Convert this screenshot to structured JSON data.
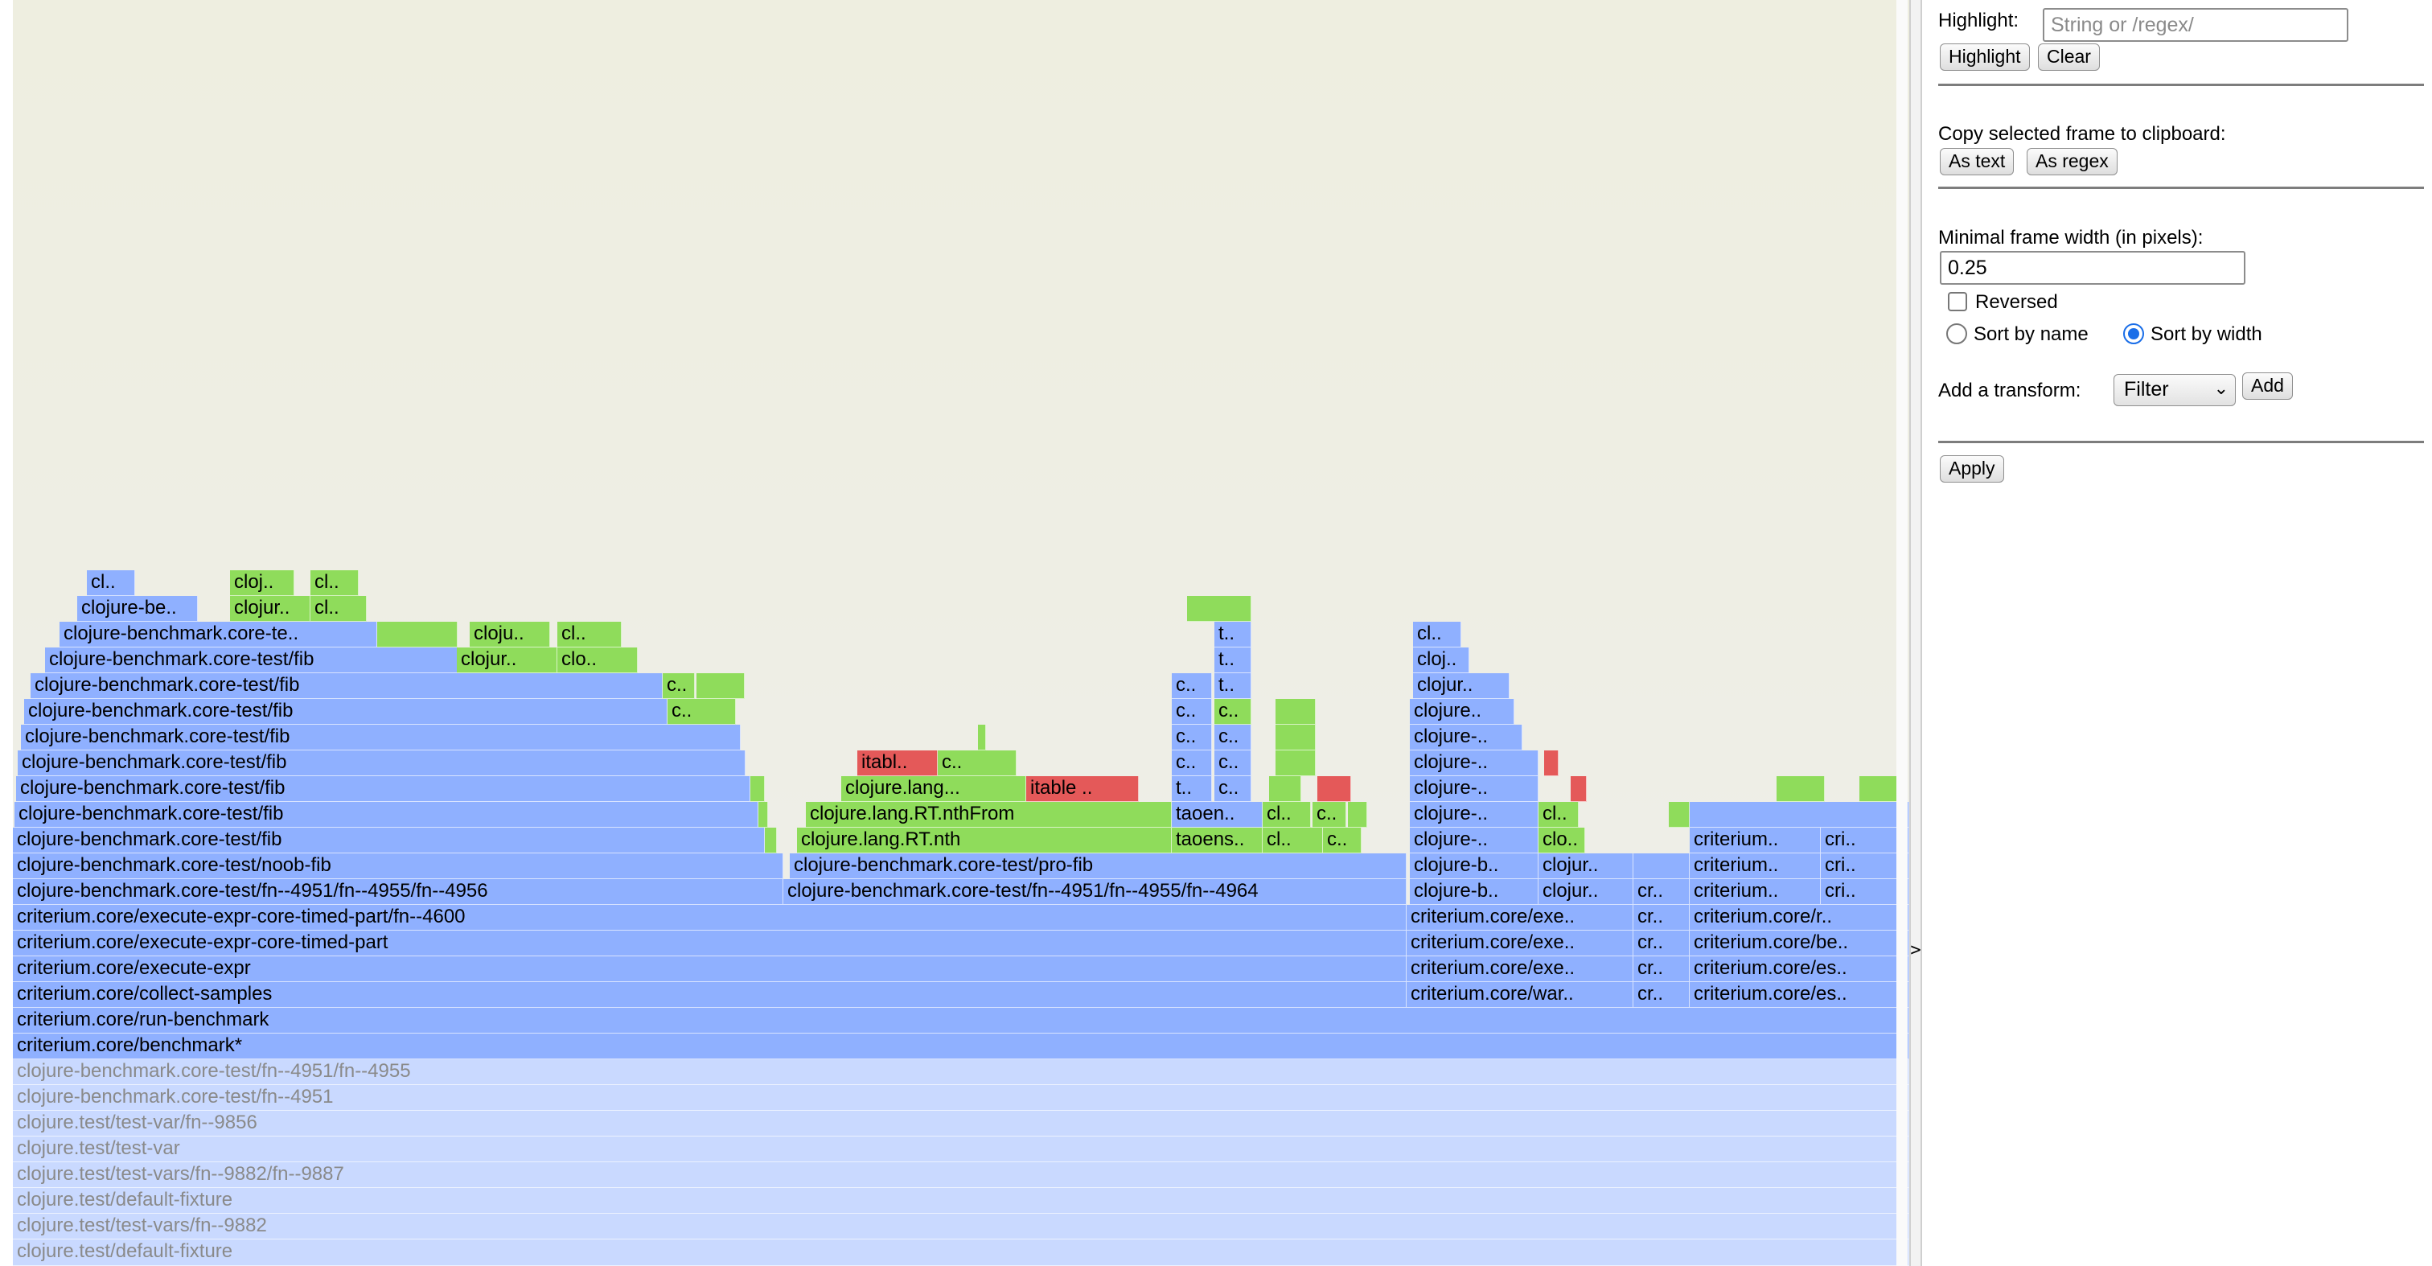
{
  "flamegraph": {
    "tall_frames": [
      {
        "label": "clojure-benchmark.core-test/fn--4951/fn--4955/fn--4956"
      },
      {
        "label": "clojure-benchmark.core-test/fn--4951/fn--4955/fn--4964"
      },
      {
        "label": "clojure-benchmark.core-test/noob-fib"
      },
      {
        "label": "clojure-benchmark.core-test/pro-fib"
      },
      {
        "label": "clojure.lang.RT.nth"
      },
      {
        "label": "clojure.lang.RT.nthFrom"
      },
      {
        "label": "clojure.lang..."
      },
      {
        "label": "itable .."
      },
      {
        "label": "itabl.."
      },
      {
        "label": "taoens.."
      },
      {
        "label": "taoen.."
      }
    ],
    "base_frames": [
      "criterium.core/execute-expr-core-timed-part/fn--4600",
      "criterium.core/execute-expr-core-timed-part",
      "criterium.core/execute-expr",
      "criterium.core/collect-samples",
      "criterium.core/run-benchmark",
      "criterium.core/benchmark*"
    ],
    "faded_frames": [
      "clojure-benchmark.core-test/fn--4951/fn--4955",
      "clojure-benchmark.core-test/fn--4951",
      "clojure.test/test-var/fn--9856",
      "clojure.test/test-var",
      "clojure.test/test-vars/fn--9882/fn--9887",
      "clojure.test/default-fixture",
      "clojure.test/test-vars/fn--9882",
      "clojure.test/default-fixture"
    ],
    "fib_label": "clojure-benchmark.core-test/fib",
    "fib_te_label": "clojure-benchmark.core-te..",
    "fib_be_label": "clojure-be..",
    "misc_labels": {
      "cl": "cl..",
      "cloj": "cloj..",
      "clojur": "clojur..",
      "cloju": "cloju..",
      "clo": "clo..",
      "c": "c..",
      "t": "t..",
      "clojur_1": "clojur..",
      "clojure_1": "clojure..",
      "clojure_dash": "clojure-..",
      "clojure_b": "clojure-b..",
      "cr": "cr..",
      "criterium": "criterium..",
      "cri": "cri..",
      "crit_exe": "criterium.core/exe..",
      "crit_war": "criterium.core/war..",
      "crit_r": "criterium.core/r..",
      "crit_be": "criterium.core/be..",
      "crit_es": "criterium.core/es.."
    }
  },
  "panel": {
    "highlight_label": "Highlight:",
    "highlight_placeholder": "String or /regex/",
    "highlight_button": "Highlight",
    "clear_button": "Clear",
    "copy_label": "Copy selected frame to clipboard:",
    "as_text_button": "As text",
    "as_regex_button": "As regex",
    "min_width_label": "Minimal frame width (in pixels):",
    "min_width_value": "0.25",
    "reversed_label": "Reversed",
    "reversed_checked": false,
    "sort_by_name_label": "Sort by name",
    "sort_by_width_label": "Sort by width",
    "sort_selected": "width",
    "transform_label": "Add a transform:",
    "transform_selected": "Filter",
    "add_button": "Add",
    "apply_button": "Apply",
    "toggle_glyph": ">"
  },
  "colors": {
    "frame_blue": "#8fb0ff",
    "frame_green": "#8fdc5b",
    "frame_red": "#e45959",
    "frame_faded": "#c9d9ff",
    "radio_accent": "#1a6ee8"
  }
}
